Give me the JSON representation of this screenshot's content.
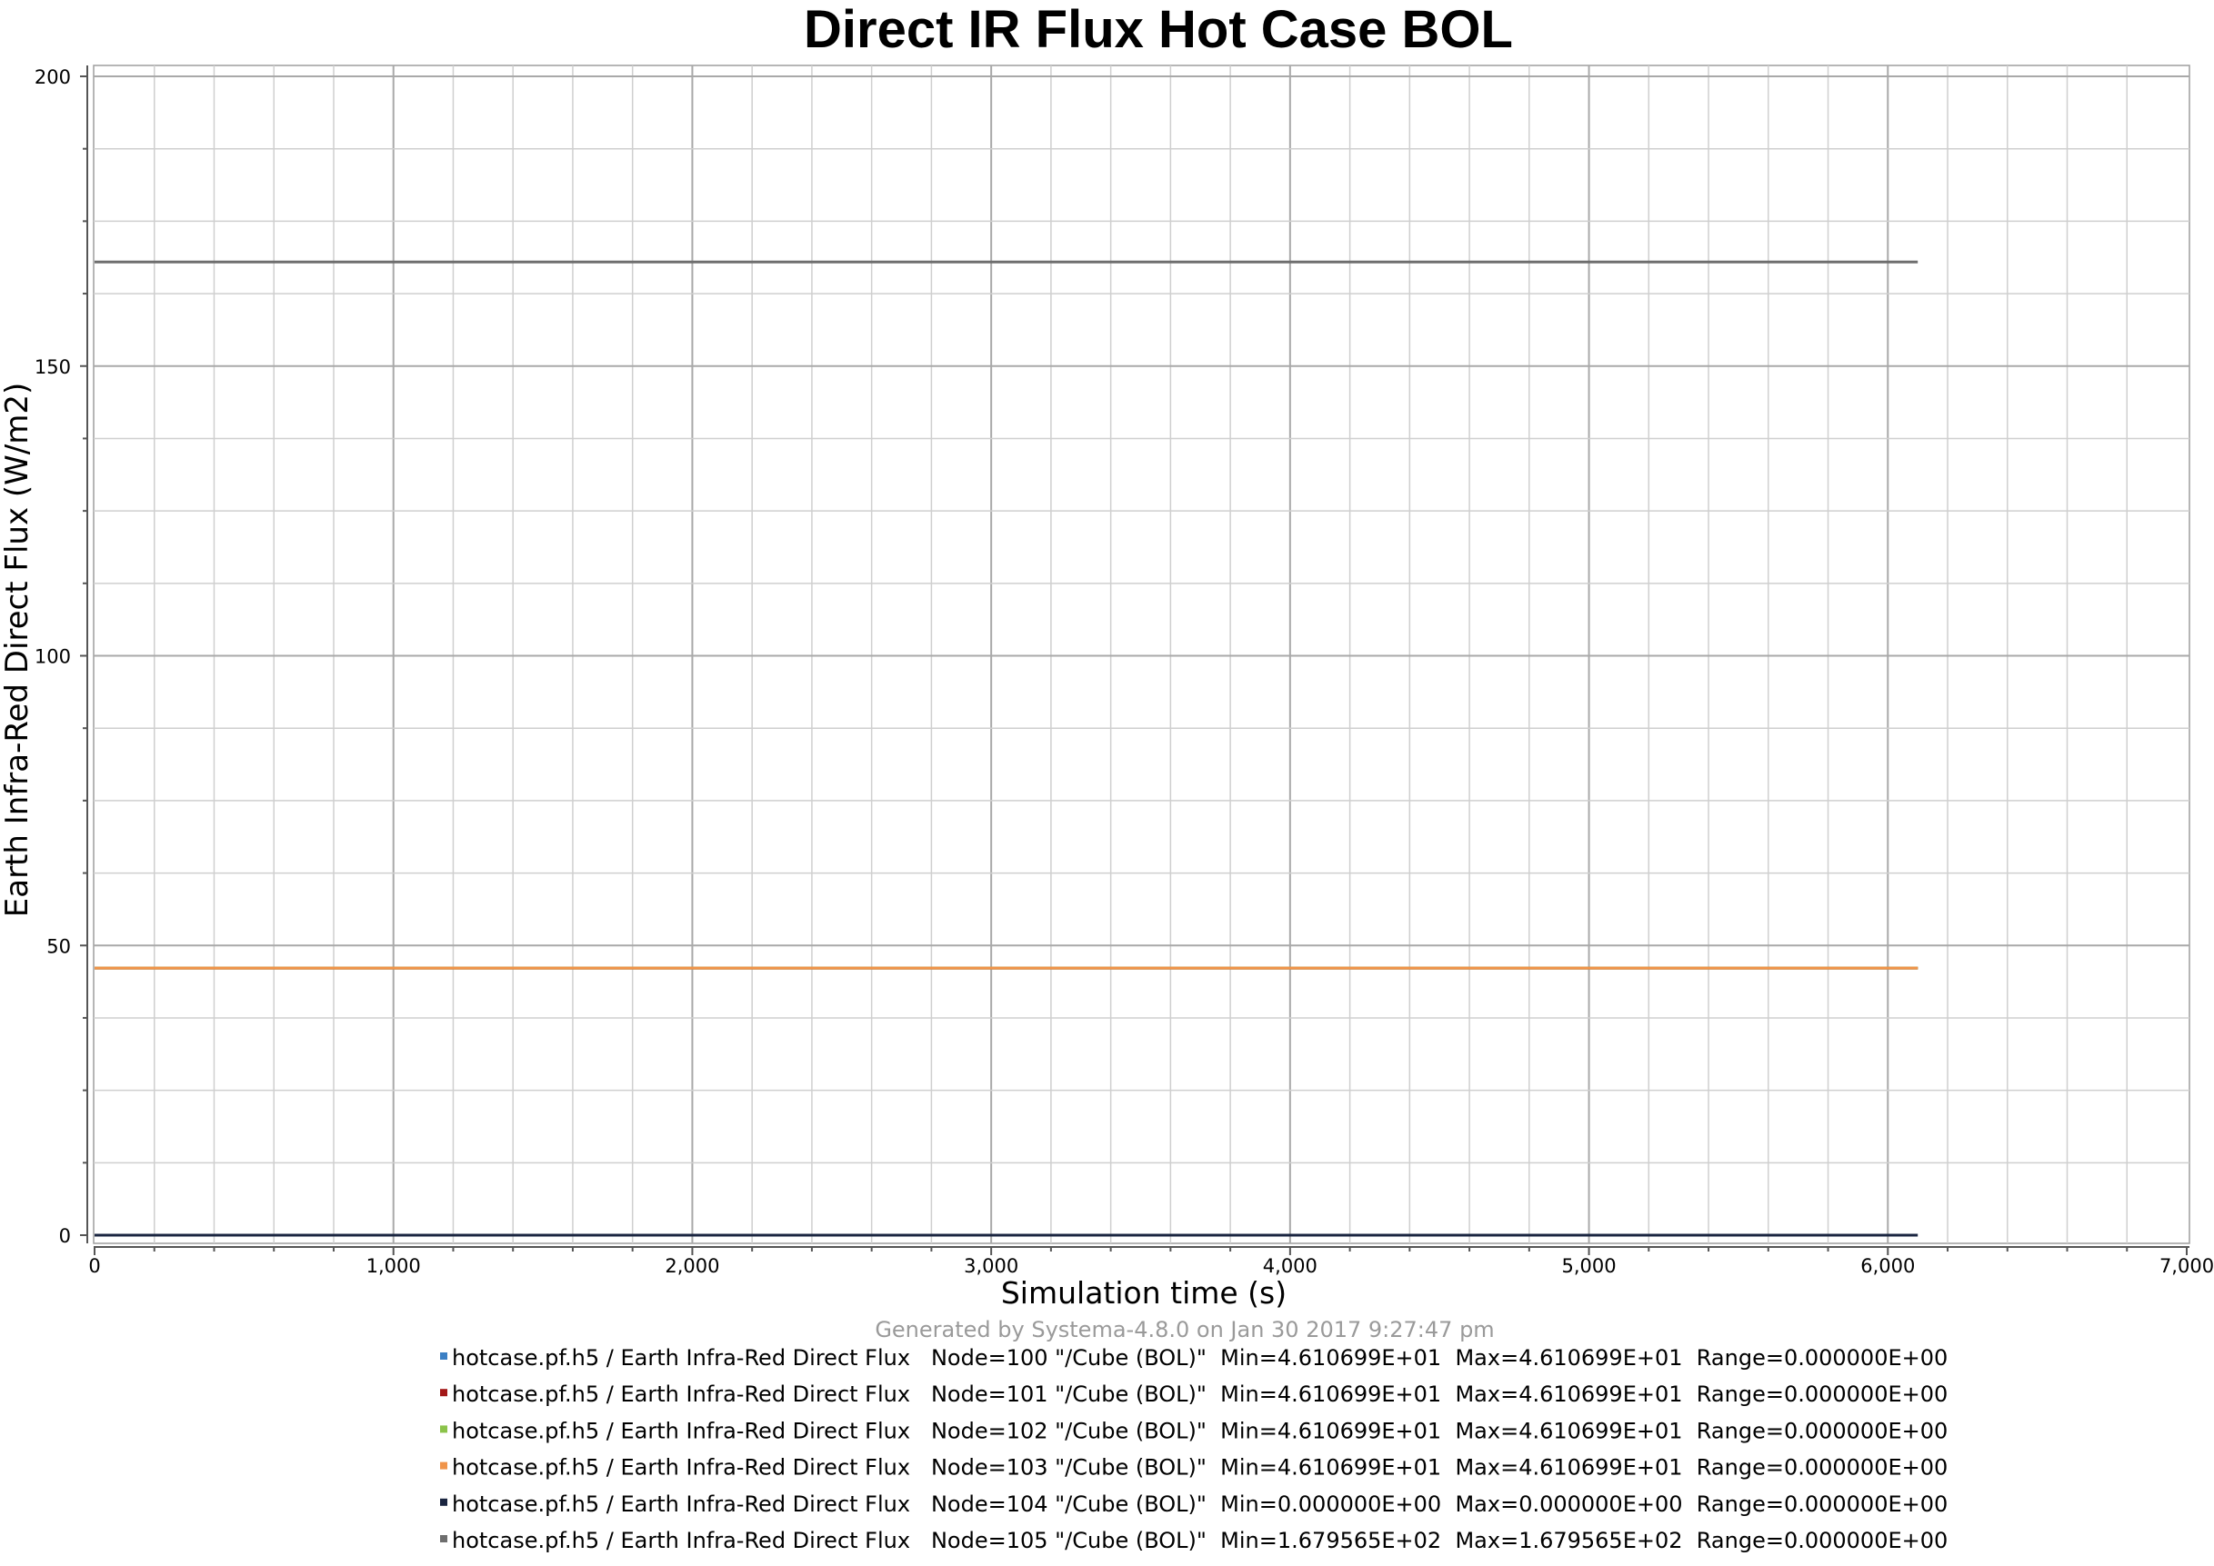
{
  "chart_data": {
    "type": "line",
    "title": "Direct IR Flux Hot Case BOL",
    "xlabel": "Simulation time (s)",
    "ylabel": "Earth Infra-Red Direct Flux (W/m2)",
    "xlim": [
      0,
      7000
    ],
    "ylim": [
      0,
      200
    ],
    "x_ticks": [
      0,
      1000,
      2000,
      3000,
      4000,
      5000,
      6000,
      7000
    ],
    "x_tick_labels": [
      "0",
      "1,000",
      "2,000",
      "3,000",
      "4,000",
      "5,000",
      "6,000",
      "7,000"
    ],
    "y_ticks": [
      0,
      50,
      100,
      150,
      200
    ],
    "y_tick_labels": [
      "0",
      "50",
      "100",
      "150",
      "200"
    ],
    "grid": true,
    "legend_position": "bottom",
    "footer": "Generated by Systema-4.8.0 on Jan 30 2017 9:27:47 pm",
    "series": [
      {
        "name": "hotcase.pf.h5 / Earth Infra-Red Direct Flux   Node=100 \"/Cube (BOL)\"  Min=4.610699E+01  Max=4.610699E+01  Range=0.000000E+00",
        "color": "#3b7fc4",
        "x": [
          0,
          6100
        ],
        "y": [
          46.10699,
          46.10699
        ]
      },
      {
        "name": "hotcase.pf.h5 / Earth Infra-Red Direct Flux   Node=101 \"/Cube (BOL)\"  Min=4.610699E+01  Max=4.610699E+01  Range=0.000000E+00",
        "color": "#a31818",
        "x": [
          0,
          6100
        ],
        "y": [
          46.10699,
          46.10699
        ]
      },
      {
        "name": "hotcase.pf.h5 / Earth Infra-Red Direct Flux   Node=102 \"/Cube (BOL)\"  Min=4.610699E+01  Max=4.610699E+01  Range=0.000000E+00",
        "color": "#8bc34a",
        "x": [
          0,
          6100
        ],
        "y": [
          46.10699,
          46.10699
        ]
      },
      {
        "name": "hotcase.pf.h5 / Earth Infra-Red Direct Flux   Node=103 \"/Cube (BOL)\"  Min=4.610699E+01  Max=4.610699E+01  Range=0.000000E+00",
        "color": "#f0944a",
        "x": [
          0,
          6100
        ],
        "y": [
          46.10699,
          46.10699
        ]
      },
      {
        "name": "hotcase.pf.h5 / Earth Infra-Red Direct Flux   Node=104 \"/Cube (BOL)\"  Min=0.000000E+00  Max=0.000000E+00  Range=0.000000E+00",
        "color": "#1a2540",
        "x": [
          0,
          6100
        ],
        "y": [
          0,
          0
        ]
      },
      {
        "name": "hotcase.pf.h5 / Earth Infra-Red Direct Flux   Node=105 \"/Cube (BOL)\"  Min=1.679565E+02  Max=1.679565E+02  Range=0.000000E+00",
        "color": "#6e6e6e",
        "x": [
          0,
          6100
        ],
        "y": [
          167.9565,
          167.9565
        ]
      }
    ]
  }
}
